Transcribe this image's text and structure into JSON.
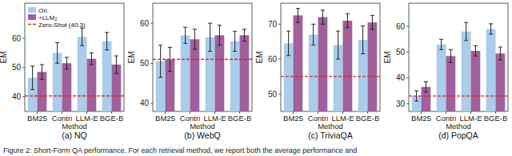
{
  "chart_data": [
    {
      "type": "bar",
      "title": "(a) NQ",
      "x_label": "Method",
      "y_label": "EM",
      "categories": [
        "BM25",
        "Contri",
        "LLM-E",
        "BGE-B"
      ],
      "series": [
        {
          "name": "Ori.",
          "color": "#a9cdea",
          "values": [
            46.5,
            55,
            60.5,
            59
          ],
          "errors": [
            4,
            3.5,
            3,
            3
          ]
        },
        {
          "name": "+LLM₂",
          "color": "#a0609a",
          "values": [
            48.5,
            51.5,
            53,
            51
          ],
          "errors": [
            2.5,
            2,
            2,
            3
          ]
        }
      ],
      "reference_line": {
        "value": 40.3,
        "label": "Zero-Shot (40.3)",
        "color": "#d62728",
        "line_style": "dashed"
      },
      "legend": "upper left",
      "ylim": [
        35,
        72
      ],
      "yticks": [
        40,
        50,
        60
      ]
    },
    {
      "type": "bar",
      "title": "(b) WebQ",
      "x_label": "Method",
      "y_label": "EM",
      "categories": [
        "BM25",
        "Contri",
        "LLM-E",
        "BGE-B"
      ],
      "series": [
        {
          "color": "#a9cdea",
          "values": [
            50.5,
            57,
            56.5,
            55.5
          ],
          "errors": [
            4,
            2,
            3.5,
            2.5
          ]
        },
        {
          "color": "#a0609a",
          "values": [
            51,
            56,
            57,
            57
          ],
          "errors": [
            3,
            2.5,
            2.5,
            1.5
          ]
        }
      ],
      "reference_line": {
        "value": 51,
        "color": "#d62728",
        "line_style": "dashed"
      },
      "ylim": [
        38,
        65
      ],
      "yticks": [
        40,
        50,
        60
      ]
    },
    {
      "type": "bar",
      "title": "(c) TriviaQA",
      "x_label": "Method",
      "y_label": "EM",
      "categories": [
        "BM25",
        "Contri",
        "LLM-E",
        "BGE-B"
      ],
      "series": [
        {
          "color": "#a9cdea",
          "values": [
            64.5,
            67,
            64,
            65.5
          ],
          "errors": [
            3.5,
            3,
            4,
            4
          ]
        },
        {
          "color": "#a0609a",
          "values": [
            72.5,
            72,
            71,
            70.5
          ],
          "errors": [
            2,
            2,
            2,
            2
          ]
        }
      ],
      "reference_line": {
        "value": 55,
        "color": "#d62728",
        "line_style": "dashed"
      },
      "ylim": [
        45,
        76
      ],
      "yticks": [
        50,
        60,
        70
      ]
    },
    {
      "type": "bar",
      "title": "(d) PopQA",
      "x_label": "Method",
      "y_label": "EM",
      "categories": [
        "BM25",
        "Contri",
        "LLM-E",
        "BGE-B"
      ],
      "series": [
        {
          "color": "#a9cdea",
          "values": [
            33,
            53,
            58,
            59
          ],
          "errors": [
            2,
            2,
            3.5,
            2
          ]
        },
        {
          "color": "#a0609a",
          "values": [
            36.5,
            48.5,
            50.5,
            49.5
          ],
          "errors": [
            2,
            2.5,
            2,
            2.5
          ]
        }
      ],
      "reference_line": {
        "value": 33,
        "color": "#d62728",
        "line_style": "dashed"
      },
      "ylim": [
        27,
        69
      ],
      "yticks": [
        30,
        40,
        50,
        60
      ]
    }
  ],
  "caption": "Figure 2: Short-Form QA performance. For each retrieval method, we report both the average performance and"
}
